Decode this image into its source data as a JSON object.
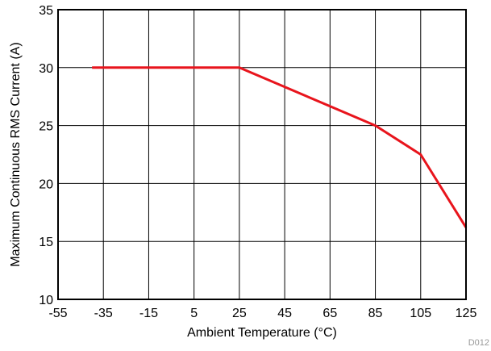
{
  "chart_data": {
    "type": "line",
    "title": "",
    "xlabel": "Ambient Temperature (°C)",
    "ylabel": "Maximum Continuous RMS Current (A)",
    "xlim": [
      -55,
      125
    ],
    "ylim": [
      10,
      35
    ],
    "xticks": [
      -55,
      -35,
      -15,
      5,
      25,
      45,
      65,
      85,
      105,
      125
    ],
    "yticks": [
      10,
      15,
      20,
      25,
      30,
      35
    ],
    "grid": true,
    "legend": "none",
    "series": [
      {
        "x": [
          -40,
          25,
          85,
          105,
          125
        ],
        "y": [
          30,
          30,
          25,
          22.5,
          16.2
        ],
        "color": "#e8141c"
      }
    ],
    "footnote": "D012"
  }
}
